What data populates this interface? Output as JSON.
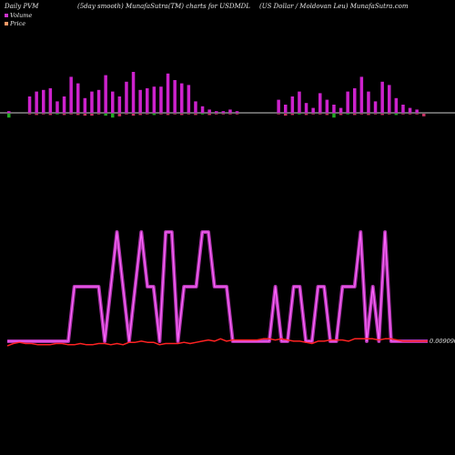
{
  "header": {
    "left": "Daily PVM",
    "middle": "(5day smooth) MunafaSutra(TM) charts for USDMDL",
    "right": "(US Dollar / Moldovan  Leu) MunafaSutra.com"
  },
  "legend": [
    {
      "label": "Volume",
      "color": "#cc33cc"
    },
    {
      "label": "Price",
      "color": "#ff9966"
    }
  ],
  "colors": {
    "volume_up": "#cc22cc",
    "volume_down": "#22aa22",
    "price_band_outer": "#aa33aa",
    "price_band_inner": "#ff66ff",
    "price_line": "#ff2222",
    "baseline": "#cccccc"
  },
  "chart_data": {
    "type": "bar",
    "price_label": "0.00909090",
    "volume_bars": [
      {
        "up": 2,
        "down": 6
      },
      {
        "up": 0,
        "down": 0
      },
      {
        "up": 0,
        "down": 0
      },
      {
        "up": 20,
        "down": 1
      },
      {
        "up": 26,
        "down": 2
      },
      {
        "up": 28,
        "down": 1
      },
      {
        "up": 30,
        "down": 2
      },
      {
        "up": 14,
        "down": 1
      },
      {
        "up": 20,
        "down": 2
      },
      {
        "up": 44,
        "down": 1
      },
      {
        "up": 36,
        "down": 2
      },
      {
        "up": 18,
        "down": 3
      },
      {
        "up": 26,
        "down": 3
      },
      {
        "up": 28,
        "down": 1
      },
      {
        "up": 46,
        "down": 3
      },
      {
        "up": 26,
        "down": 6
      },
      {
        "up": 20,
        "down": 4
      },
      {
        "up": 38,
        "down": 1
      },
      {
        "up": 50,
        "down": 3
      },
      {
        "up": 28,
        "down": 2
      },
      {
        "up": 30,
        "down": 1
      },
      {
        "up": 32,
        "down": 2
      },
      {
        "up": 32,
        "down": 1
      },
      {
        "up": 48,
        "down": 2
      },
      {
        "up": 40,
        "down": 1
      },
      {
        "up": 36,
        "down": 2
      },
      {
        "up": 34,
        "down": 1
      },
      {
        "up": 14,
        "down": 2
      },
      {
        "up": 8,
        "down": 1
      },
      {
        "up": 4,
        "down": 2
      },
      {
        "up": 2,
        "down": 1
      },
      {
        "up": 2,
        "down": 1
      },
      {
        "up": 4,
        "down": 1
      },
      {
        "up": 2,
        "down": 1
      },
      {
        "up": 0,
        "down": 0
      },
      {
        "up": 0,
        "down": 0
      },
      {
        "up": 0,
        "down": 0
      },
      {
        "up": 0,
        "down": 0
      },
      {
        "up": 0,
        "down": 0
      },
      {
        "up": 16,
        "down": 1
      },
      {
        "up": 10,
        "down": 3
      },
      {
        "up": 20,
        "down": 2
      },
      {
        "up": 26,
        "down": 1
      },
      {
        "up": 12,
        "down": 2
      },
      {
        "up": 6,
        "down": 1
      },
      {
        "up": 24,
        "down": 1
      },
      {
        "up": 16,
        "down": 2
      },
      {
        "up": 10,
        "down": 6
      },
      {
        "up": 6,
        "down": 2
      },
      {
        "up": 26,
        "down": 1
      },
      {
        "up": 30,
        "down": 2
      },
      {
        "up": 44,
        "down": 1
      },
      {
        "up": 26,
        "down": 2
      },
      {
        "up": 14,
        "down": 1
      },
      {
        "up": 38,
        "down": 2
      },
      {
        "up": 34,
        "down": 1
      },
      {
        "up": 18,
        "down": 2
      },
      {
        "up": 10,
        "down": 1
      },
      {
        "up": 6,
        "down": 1
      },
      {
        "up": 4,
        "down": 1
      },
      {
        "up": 0,
        "down": 4
      }
    ],
    "pvm_band": [
      0,
      0,
      0,
      0,
      0,
      0,
      0,
      0,
      0,
      0,
      0,
      10,
      10,
      10,
      10,
      10,
      0,
      10,
      20,
      10,
      0,
      10,
      20,
      10,
      10,
      0,
      20,
      20,
      0,
      10,
      10,
      10,
      20,
      20,
      10,
      10,
      10,
      0,
      0,
      0,
      0,
      0,
      0,
      0,
      10,
      0,
      0,
      10,
      10,
      0,
      0,
      10,
      10,
      0,
      0,
      10,
      10,
      10,
      20,
      0,
      10,
      0,
      20,
      0,
      0,
      0,
      0,
      0,
      0,
      0
    ],
    "price_line": [
      3,
      5,
      6,
      5,
      5,
      4,
      4,
      4,
      5,
      5,
      4,
      4,
      5,
      4,
      4,
      5,
      5,
      4,
      5,
      4,
      6,
      6,
      7,
      6,
      6,
      4,
      5,
      5,
      5,
      6,
      5,
      6,
      7,
      8,
      7,
      9,
      7,
      8,
      8,
      8,
      8,
      8,
      9,
      9,
      8,
      9,
      8,
      7,
      7,
      6,
      5,
      7,
      7,
      8,
      8,
      8,
      7,
      9,
      9,
      9,
      9,
      8,
      9,
      9,
      8,
      7,
      7,
      7,
      7,
      7
    ]
  }
}
